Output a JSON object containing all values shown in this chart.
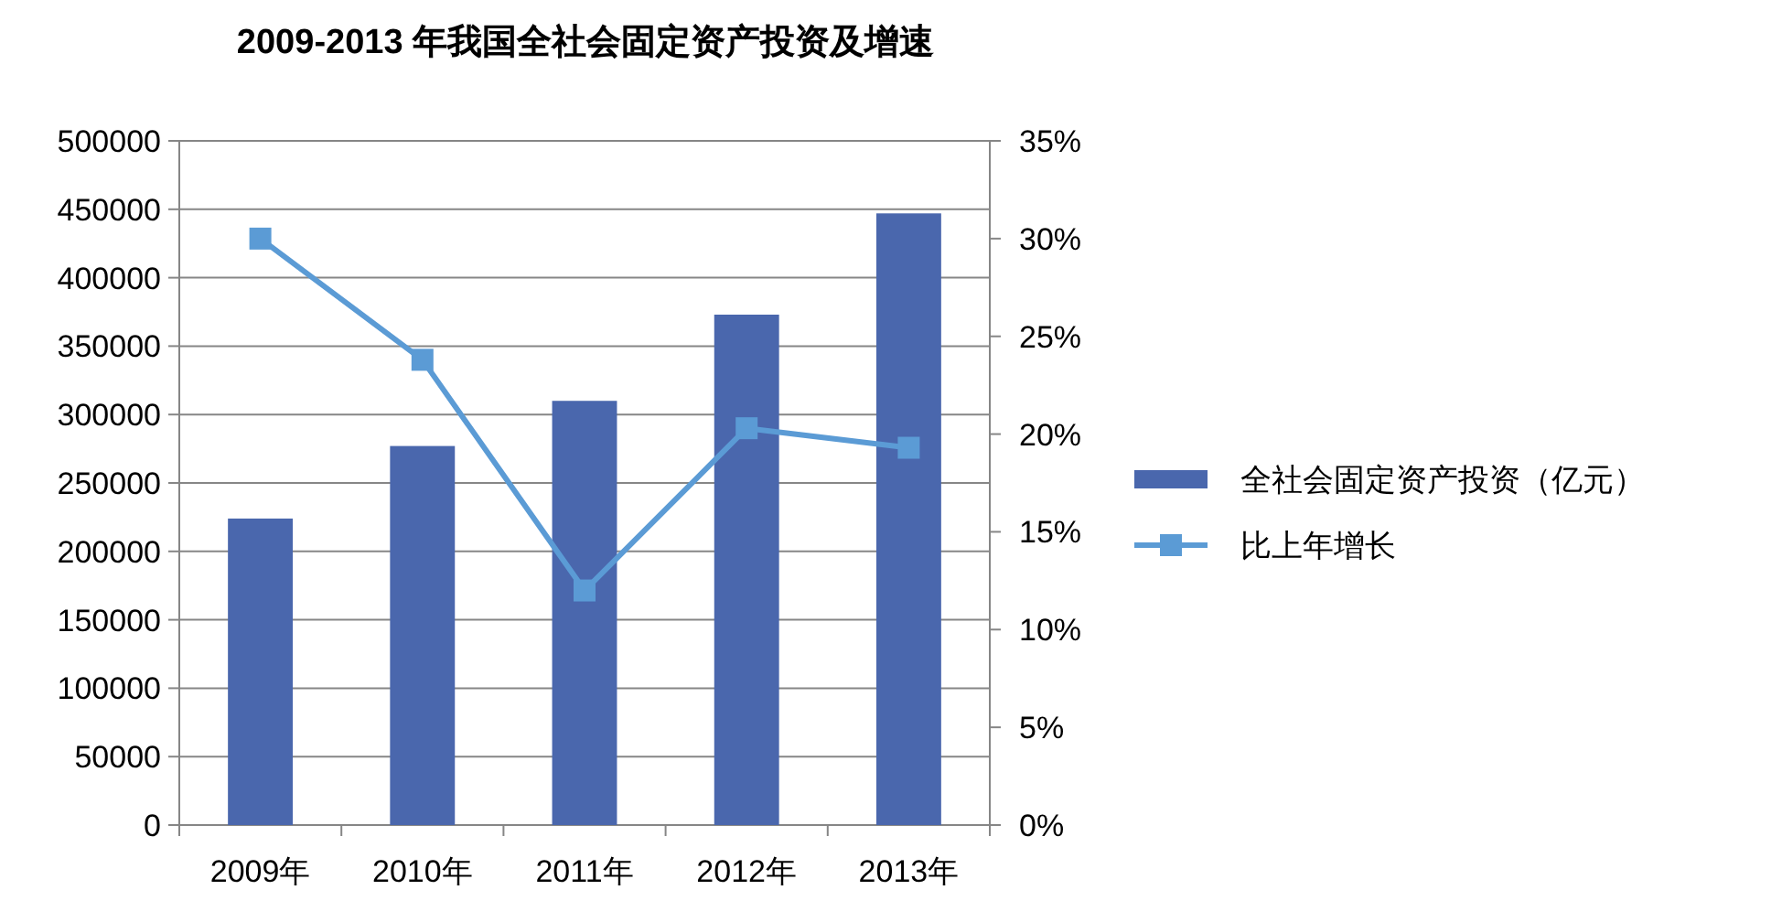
{
  "chart_data": {
    "type": "bar",
    "title": "2009-2013 年我国全社会固定资产投资及增速",
    "categories": [
      "2009年",
      "2010年",
      "2011年",
      "2012年",
      "2013年"
    ],
    "series": [
      {
        "name": "全社会固定资产投资（亿元）",
        "color": "#4a67ad",
        "values": [
          224000,
          277000,
          310000,
          373000,
          447000
        ]
      },
      {
        "name": "比上年增长",
        "type": "line",
        "axis": "y2",
        "color": "#5b9bd5",
        "marker": "square",
        "values": [
          30.0,
          23.8,
          12.0,
          20.3,
          19.3
        ]
      }
    ],
    "ylim": [
      0,
      500000
    ],
    "yticks": [
      0,
      50000,
      100000,
      150000,
      200000,
      250000,
      300000,
      350000,
      400000,
      450000,
      500000
    ],
    "y2lim": [
      0,
      35
    ],
    "y2ticks": [
      {
        "value": 0,
        "label": "0%"
      },
      {
        "value": 5,
        "label": "5%"
      },
      {
        "value": 10,
        "label": "10%"
      },
      {
        "value": 15,
        "label": "15%"
      },
      {
        "value": 20,
        "label": "20%"
      },
      {
        "value": 25,
        "label": "25%"
      },
      {
        "value": 30,
        "label": "30%"
      },
      {
        "value": 35,
        "label": "35%"
      }
    ],
    "grid": "y",
    "legend": "right"
  }
}
